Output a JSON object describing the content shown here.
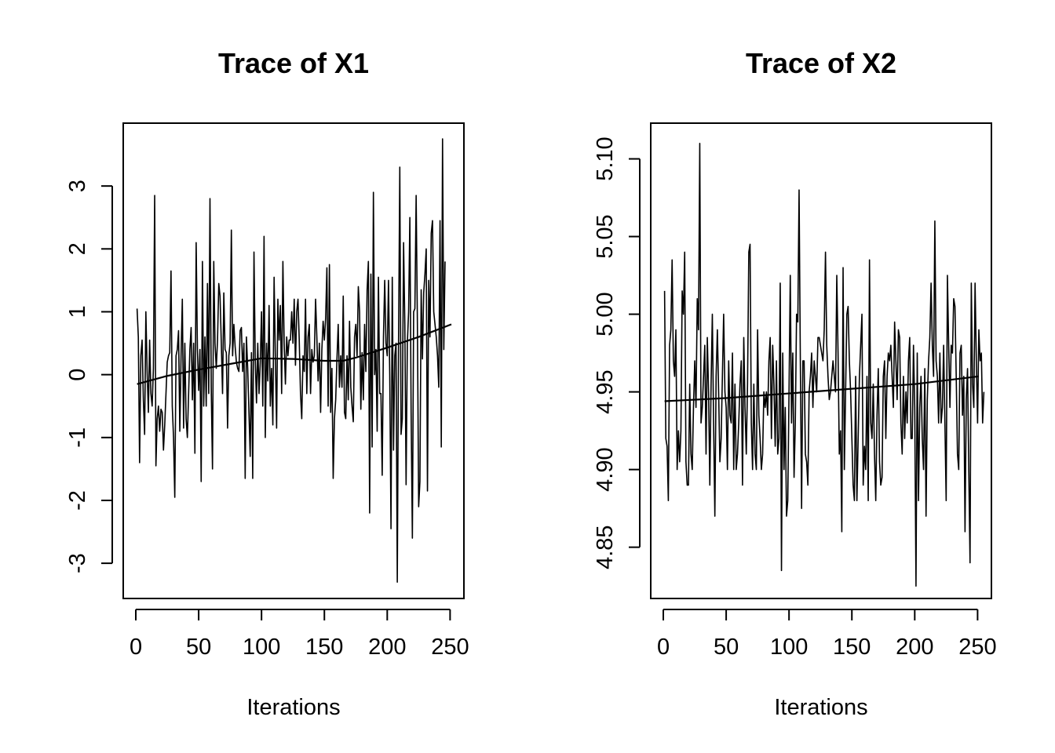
{
  "chart_data": [
    {
      "type": "line",
      "title": "Trace of X1",
      "xlabel": "Iterations",
      "ylabel": "",
      "xlim": [
        -10,
        261
      ],
      "ylim": [
        -3.56,
        4.0
      ],
      "xticks": [
        0,
        50,
        100,
        150,
        200,
        250
      ],
      "xtick_labels": [
        "0",
        "50",
        "100",
        "150",
        "200",
        "250"
      ],
      "yticks": [
        -3,
        -2,
        -1,
        0,
        1,
        2,
        3
      ],
      "ytick_labels": [
        "-3",
        "-2",
        "-1",
        "0",
        "1",
        "2",
        "3"
      ],
      "grid": false,
      "legend": "none",
      "series": [
        {
          "x_start": 1,
          "values": [
            1.05,
            0.6,
            -1.4,
            0.3,
            0.55,
            -0.4,
            -0.95,
            1.0,
            0.05,
            -0.6,
            0.55,
            -0.3,
            -0.5,
            0.1,
            2.85,
            -1.45,
            -0.7,
            -0.5,
            -0.9,
            -0.55,
            -0.6,
            -1.2,
            -0.8,
            -0.3,
            0.2,
            0.3,
            0.35,
            1.65,
            -0.5,
            -1.0,
            -1.95,
            0.3,
            0.4,
            0.7,
            -0.9,
            0.3,
            1.2,
            -0.85,
            0.5,
            -0.7,
            -1.0,
            -0.3,
            0.4,
            0.75,
            -0.4,
            0.5,
            -1.25,
            2.1,
            0.4,
            -0.25,
            0.4,
            -1.7,
            1.8,
            -0.5,
            0.6,
            -0.5,
            1.45,
            -0.3,
            2.8,
            -0.2,
            -1.5,
            1.8,
            0.5,
            0.1,
            0.55,
            1.45,
            1.25,
            0.5,
            -0.3,
            1.3,
            0.4,
            0.35,
            -0.85,
            0.3,
            0.5,
            2.3,
            0.3,
            0.8,
            0.45,
            0.2,
            0.1,
            0.05,
            0.7,
            0.75,
            0.05,
            0.5,
            -1.65,
            0.6,
            0.1,
            -0.6,
            -1.3,
            0.35,
            -1.65,
            1.95,
            0.25,
            -0.45,
            0.5,
            -0.3,
            0.2,
            1.0,
            -0.5,
            2.2,
            -1.0,
            0.5,
            -0.1,
            1.1,
            -0.5,
            0.1,
            -0.8,
            1.55,
            0.3,
            -0.85,
            1.2,
            0.55,
            1.1,
            -0.3,
            1.8,
            0.5,
            -0.15,
            0.6,
            0.3,
            0.55,
            0.55,
            1.0,
            0.5,
            1.2,
            0.15,
            1.0,
            1.2,
            0.55,
            -0.3,
            -0.7,
            0.3,
            0.05,
            1.2,
            -0.3,
            0.6,
            0.8,
            -0.3,
            0.4,
            0.2,
            0.3,
            1.2,
            0.6,
            -0.1,
            0.5,
            -0.6,
            0.4,
            0.85,
            0.55,
            0.9,
            1.7,
            -0.5,
            1.75,
            -0.6,
            0.1,
            -1.65,
            -0.7,
            -0.4,
            0.25,
            0.8,
            -0.2,
            0.3,
            -0.2,
            1.25,
            -0.6,
            -0.7,
            0.3,
            -0.4,
            0.85,
            -0.2,
            -0.5,
            -0.75,
            0.6,
            0.8,
            0.3,
            1.4,
            1.0,
            -0.55,
            0.35,
            -0.4,
            0.8,
            0.05,
            1.35,
            1.8,
            -2.2,
            1.6,
            -1.15,
            2.9,
            0.0,
            0.4,
            -0.9,
            1.55,
            -0.3,
            -0.3,
            -1.6,
            0.6,
            1.5,
            0.5,
            0.3,
            1.5,
            0.0,
            -2.45,
            1.55,
            -1.2,
            0.3,
            0.5,
            -3.3,
            0.5,
            3.3,
            -0.95,
            -0.7,
            2.1,
            0.8,
            -1.75,
            0.5,
            1.0,
            2.5,
            -0.6,
            -2.6,
            1.0,
            1.05,
            2.85,
            0.8,
            -2.1,
            -1.7,
            1.35,
            0.25,
            1.3,
            1.6,
            2.0,
            -1.85,
            1.5,
            0.6,
            2.25,
            2.45,
            1.0,
            0.8,
            0.6,
            0.3,
            -0.2,
            2.45,
            -1.15,
            3.75,
            0.4,
            1.8
          ]
        },
        {
          "name": "",
          "x": [
            1,
            25,
            50,
            75,
            100,
            125,
            150,
            165,
            175,
            200,
            225,
            251
          ],
          "values": [
            -0.15,
            -0.02,
            0.08,
            0.17,
            0.26,
            0.25,
            0.22,
            0.22,
            0.27,
            0.43,
            0.6,
            0.8
          ]
        }
      ]
    },
    {
      "type": "line",
      "title": "Trace of X2",
      "xlabel": "Iterations",
      "ylabel": "",
      "xlim": [
        -10,
        261
      ],
      "ylim": [
        4.817,
        5.123
      ],
      "xticks": [
        0,
        50,
        100,
        150,
        200,
        250
      ],
      "xtick_labels": [
        "0",
        "50",
        "100",
        "150",
        "200",
        "250"
      ],
      "yticks": [
        4.85,
        4.9,
        4.95,
        5.0,
        5.05,
        5.1
      ],
      "ytick_labels": [
        "4.85",
        "4.90",
        "4.95",
        "5.00",
        "5.05",
        "5.10"
      ],
      "grid": false,
      "legend": "none",
      "series": [
        {
          "x_start": 1,
          "values": [
            5.015,
            4.92,
            4.915,
            4.88,
            4.98,
            4.99,
            5.035,
            4.97,
            4.96,
            4.99,
            4.9,
            4.925,
            4.905,
            4.925,
            5.015,
            5.0,
            5.04,
            4.905,
            4.89,
            4.89,
            4.955,
            4.91,
            4.9,
            4.94,
            4.97,
            4.94,
            5.01,
            4.99,
            5.11,
            4.93,
            4.94,
            4.96,
            4.98,
            4.91,
            4.985,
            4.95,
            4.89,
            4.955,
            5.0,
            4.93,
            4.87,
            4.96,
            4.99,
            4.95,
            4.905,
            4.92,
            4.96,
            5.0,
            4.95,
            4.94,
            4.9,
            4.97,
            4.935,
            4.93,
            4.975,
            4.9,
            4.955,
            4.9,
            4.91,
            4.93,
            4.955,
            4.97,
            4.89,
            4.985,
            4.94,
            4.91,
            4.955,
            5.04,
            5.045,
            4.93,
            4.9,
            4.955,
            4.91,
            4.9,
            4.99,
            4.935,
            4.92,
            4.9,
            4.91,
            4.95,
            4.94,
            4.95,
            4.935,
            4.97,
            4.985,
            4.92,
            4.98,
            4.955,
            4.915,
            4.97,
            4.91,
            4.92,
            5.02,
            4.835,
            4.975,
            4.9,
            4.94,
            4.87,
            4.88,
            4.95,
            5.025,
            4.93,
            4.975,
            4.895,
            4.93,
            5.0,
            4.995,
            5.08,
            4.97,
            4.875,
            4.97,
            4.97,
            4.91,
            4.905,
            4.89,
            4.95,
            4.96,
            4.975,
            4.94,
            4.97,
            4.96,
            4.95,
            4.985,
            4.985,
            4.98,
            4.975,
            4.97,
            4.99,
            5.04,
            4.98,
            4.96,
            4.945,
            4.95,
            4.96,
            4.97,
            4.96,
            4.95,
            5.025,
            4.975,
            4.91,
            4.925,
            4.86,
            5.03,
            4.9,
            4.95,
            5.0,
            5.005,
            4.97,
            4.95,
            4.92,
            4.89,
            4.88,
            4.96,
            4.88,
            4.92,
            4.96,
            4.98,
            5.0,
            4.89,
            4.915,
            4.9,
            4.96,
            4.88,
            5.035,
            4.93,
            4.92,
            4.955,
            4.91,
            4.88,
            4.935,
            4.965,
            4.905,
            4.89,
            4.895,
            4.96,
            4.97,
            4.92,
            4.96,
            4.975,
            4.97,
            4.98,
            4.96,
            4.94,
            4.995,
            4.97,
            4.945,
            4.99,
            4.985,
            4.93,
            4.91,
            4.96,
            4.92,
            4.95,
            4.93,
            4.97,
            4.985,
            4.92,
            4.92,
            4.98,
            4.94,
            4.825,
            4.975,
            4.88,
            4.94,
            4.96,
            4.92,
            4.9,
            4.965,
            4.87,
            4.945,
            4.97,
            4.985,
            5.02,
            4.98,
            4.96,
            5.06,
            4.97,
            4.96,
            4.93,
            4.975,
            4.93,
            4.94,
            4.98,
            4.93,
            4.88,
            5.025,
            4.98,
            4.94,
            4.98,
            4.975,
            5.01,
            5.005,
            4.96,
            4.91,
            4.9,
            4.975,
            4.98,
            4.935,
            4.96,
            4.86,
            4.945,
            4.965,
            4.9,
            4.84,
            5.02,
            4.955,
            4.94,
            5.02,
            4.97,
            4.93,
            4.99,
            4.97,
            4.975,
            4.93,
            4.95
          ]
        },
        {
          "name": "",
          "x": [
            1,
            50,
            100,
            150,
            200,
            251
          ],
          "values": [
            4.944,
            4.946,
            4.949,
            4.952,
            4.955,
            4.96
          ]
        }
      ]
    }
  ]
}
